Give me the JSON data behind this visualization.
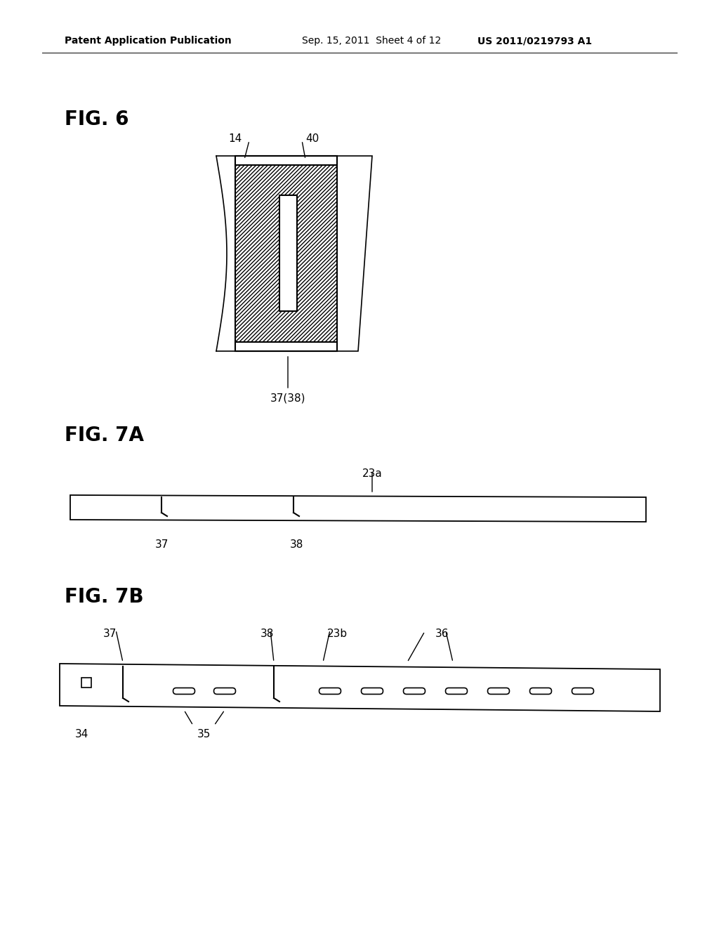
{
  "bg_color": "#ffffff",
  "header_left": "Patent Application Publication",
  "header_mid": "Sep. 15, 2011  Sheet 4 of 12",
  "header_right": "US 2011/0219793 A1",
  "fig6_label": "FIG. 6",
  "fig7a_label": "FIG. 7A",
  "fig7b_label": "FIG. 7B",
  "label_14": "14",
  "label_40": "40",
  "label_37_38": "37(38)",
  "label_37a": "37",
  "label_38a": "38",
  "label_23a": "23a",
  "label_37b": "37",
  "label_38b": "38",
  "label_23b": "23b",
  "label_36": "36",
  "label_34": "34",
  "label_35": "35"
}
